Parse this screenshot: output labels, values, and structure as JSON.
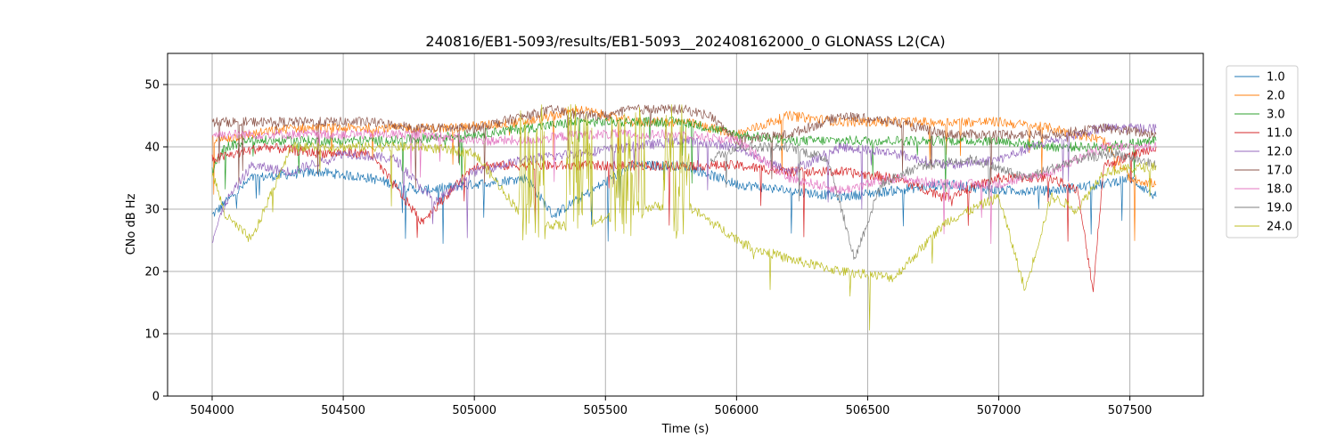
{
  "chart_data": {
    "type": "line",
    "title": "240816/EB1-5093/results/EB1-5093__202408162000_0 GLONASS L2(CA)",
    "xlabel": "Time (s)",
    "ylabel": "CNo dB Hz",
    "xlim": [
      503830,
      507780
    ],
    "ylim": [
      0,
      55
    ],
    "xticks": [
      504000,
      504500,
      505000,
      505500,
      506000,
      506500,
      507000,
      507500
    ],
    "xtick_labels": [
      "504000",
      "504500",
      "505000",
      "505500",
      "506000",
      "506500",
      "507000",
      "507500"
    ],
    "yticks": [
      0,
      10,
      20,
      30,
      40,
      50
    ],
    "ytick_labels": [
      "0",
      "10",
      "20",
      "30",
      "40",
      "50"
    ],
    "grid": true,
    "legend_position": "outside-right-top",
    "series": [
      {
        "name": "1.0",
        "color": "#1f77b4",
        "x": [
          504000,
          504150,
          504400,
          504600,
          504800,
          505000,
          505200,
          505300,
          505450,
          505600,
          505800,
          506000,
          506200,
          506400,
          506600,
          506800,
          507000,
          507200,
          507400,
          507500,
          507600
        ],
        "y": [
          29,
          35,
          36,
          35,
          33,
          34,
          35,
          29,
          33,
          37,
          37,
          34,
          33,
          32,
          33,
          34,
          33,
          33,
          34,
          35,
          32
        ]
      },
      {
        "name": "2.0",
        "color": "#ff7f0e",
        "x": [
          504000,
          504300,
          504600,
          504900,
          505200,
          505400,
          505600,
          505800,
          506000,
          506200,
          506400,
          506600,
          506800,
          507000,
          507200,
          507400,
          507500,
          507600
        ],
        "y": [
          41,
          43,
          43,
          43,
          44,
          46,
          44,
          44,
          42,
          45,
          44,
          44,
          44,
          44,
          43,
          41,
          35,
          34
        ]
      },
      {
        "name": "3.0",
        "color": "#2ca02c",
        "x": [
          504000,
          504050,
          504150,
          504400,
          504700,
          505000,
          505200,
          505400,
          505600,
          505800,
          506000,
          506200,
          506400,
          506600,
          506800,
          507000,
          507200,
          507400,
          507600
        ],
        "y": [
          36,
          40,
          41,
          41,
          41,
          42,
          43,
          44,
          44,
          44,
          42,
          41,
          41,
          41,
          41,
          41,
          40,
          40,
          41
        ]
      },
      {
        "name": "11.0",
        "color": "#d62728",
        "x": [
          504000,
          504200,
          504400,
          504600,
          504800,
          505000,
          505200,
          505400,
          505600,
          505800,
          506000,
          506200,
          506400,
          506600,
          506800,
          507000,
          507200,
          507300,
          507360,
          507400,
          507600
        ],
        "y": [
          38,
          40,
          39,
          39,
          28,
          37,
          37,
          37,
          37,
          37,
          37,
          36,
          36,
          35,
          32,
          35,
          35,
          33,
          17,
          37,
          40
        ]
      },
      {
        "name": "12.0",
        "color": "#9467bd",
        "x": [
          504000,
          504050,
          504150,
          504300,
          504500,
          504700,
          504850,
          505000,
          505200,
          505400,
          505600,
          505800,
          506000,
          506200,
          506400,
          506600,
          506800,
          507000,
          507200,
          507400,
          507600
        ],
        "y": [
          25,
          31,
          37,
          36,
          39,
          38,
          31,
          36,
          38,
          39,
          40,
          41,
          40,
          36,
          40,
          39,
          37,
          38,
          41,
          43,
          43
        ]
      },
      {
        "name": "17.0",
        "color": "#8c564b",
        "x": [
          504000,
          504200,
          504400,
          504600,
          504800,
          505000,
          505200,
          505300,
          505400,
          505500,
          505600,
          505800,
          505900,
          506000,
          506200,
          506400,
          506600,
          506800,
          507000,
          507200,
          507400,
          507600
        ],
        "y": [
          44,
          44,
          44,
          44,
          43,
          43,
          45,
          46,
          45,
          45,
          46,
          46,
          45,
          41,
          42,
          45,
          44,
          42,
          42,
          42,
          43,
          42
        ]
      },
      {
        "name": "18.0",
        "color": "#e377c2",
        "x": [
          504000,
          504200,
          504400,
          504600,
          504800,
          505000,
          505200,
          505400,
          505600,
          505800,
          506000,
          506200,
          506400,
          506600,
          506800,
          507000,
          507200,
          507400,
          507600
        ],
        "y": [
          42,
          42,
          42,
          42,
          42,
          41,
          41,
          42,
          42,
          42,
          41,
          35,
          33,
          35,
          34,
          34,
          36,
          40,
          40
        ]
      },
      {
        "name": "19.0",
        "color": "#7f7f7f",
        "x": [
          505900,
          506000,
          506200,
          506350,
          506450,
          506550,
          506700,
          506900,
          507100,
          507300,
          507450,
          507600
        ],
        "y": [
          38,
          40,
          40,
          38,
          22,
          34,
          37,
          38,
          35,
          38,
          39,
          37
        ]
      },
      {
        "name": "24.0",
        "color": "#bcbd22",
        "x": [
          504000,
          504050,
          504150,
          504300,
          504600,
          504800,
          505000,
          505200,
          505400,
          505600,
          505800,
          505900,
          506050,
          506200,
          506400,
          506600,
          506800,
          507000,
          507100,
          507200,
          507300,
          507400,
          507600
        ],
        "y": [
          36,
          29,
          25,
          40,
          40,
          40,
          39,
          28,
          27,
          30,
          31,
          28,
          24,
          22,
          20,
          19,
          28,
          32,
          17,
          32,
          30,
          36,
          37
        ]
      }
    ]
  }
}
